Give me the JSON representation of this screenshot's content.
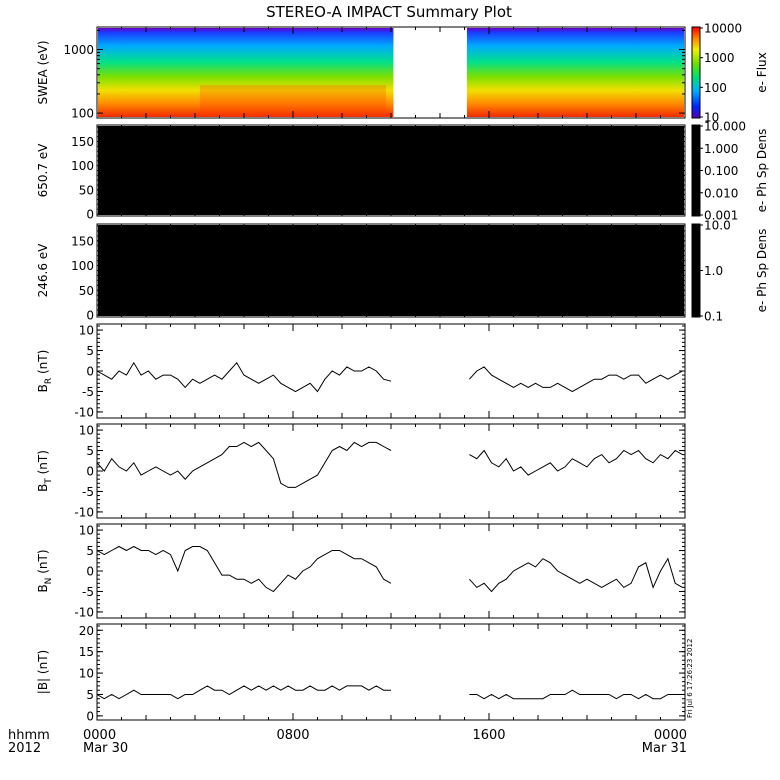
{
  "title": "STEREO-A IMPACT Summary Plot",
  "footer": {
    "time_label": "hhmm",
    "year_label": "2012",
    "x_ticks": [
      {
        "hour": 0,
        "label": "0000",
        "date": "Mar 30"
      },
      {
        "hour": 8,
        "label": "0800",
        "date": ""
      },
      {
        "hour": 16,
        "label": "1600",
        "date": ""
      },
      {
        "hour": 24,
        "label": "0000",
        "date": "Mar 31"
      }
    ],
    "timestamp": "Fri Jul  6 17:26:23 2012"
  },
  "chart_data": [
    {
      "type": "heatmap",
      "ylabel": "SWEA (eV)",
      "yscale": "log",
      "ylim": [
        90,
        2100
      ],
      "y_ticks": [
        100,
        1000
      ],
      "y_tick_labels": [
        "100",
        "1000"
      ],
      "data_gap_hours": [
        12.1,
        15.1
      ],
      "colorbar": {
        "label": "e- Flux",
        "scale": "log",
        "range": [
          10,
          10000
        ],
        "ticks": [
          10,
          100,
          1000,
          10000
        ],
        "tick_labels": [
          "10",
          "100",
          "1000",
          "10000"
        ]
      }
    },
    {
      "type": "heatmap",
      "ylabel": "650.7 eV",
      "ylim": [
        0,
        180
      ],
      "y_ticks": [
        0,
        50,
        100,
        150
      ],
      "y_tick_labels": [
        "0",
        "50",
        "100",
        "150"
      ],
      "colorbar": {
        "label": "e- Ph Sp Dens",
        "scale": "log",
        "range": [
          0.001,
          10
        ],
        "ticks": [
          0.001,
          0.01,
          0.1,
          1,
          10
        ],
        "tick_labels": [
          "0.001",
          "0.010",
          "0.100",
          "1.000",
          "10.000"
        ]
      }
    },
    {
      "type": "heatmap",
      "ylabel": "246.6 eV",
      "ylim": [
        0,
        180
      ],
      "y_ticks": [
        0,
        50,
        100,
        150
      ],
      "y_tick_labels": [
        "0",
        "50",
        "100",
        "150"
      ],
      "colorbar": {
        "label": "e- Ph Sp Dens",
        "scale": "log",
        "range": [
          0.1,
          10
        ],
        "ticks": [
          0.1,
          1,
          10
        ],
        "tick_labels": [
          "0.1",
          "1.0",
          "10.0"
        ]
      }
    },
    {
      "type": "line",
      "ylabel": "B",
      "ylabel_sub": "R",
      "ylabel_unit": "(nT)",
      "ylim": [
        -11,
        11
      ],
      "y_ticks": [
        -10,
        -5,
        0,
        5,
        10
      ],
      "y_tick_labels": [
        "-10",
        "-5",
        "0",
        "5",
        "10"
      ],
      "segments": [
        {
          "x": [
            0,
            0.3,
            0.6,
            0.9,
            1.2,
            1.5,
            1.8,
            2.1,
            2.4,
            2.7,
            3.0,
            3.3,
            3.6,
            3.9,
            4.2,
            4.5,
            4.8,
            5.1,
            5.4,
            5.7,
            6.0,
            6.3,
            6.6,
            6.9,
            7.2,
            7.5,
            7.8,
            8.1,
            8.4,
            8.7,
            9.0,
            9.3,
            9.6,
            9.9,
            10.2,
            10.5,
            10.8,
            11.1,
            11.4,
            11.7,
            12.0
          ],
          "y": [
            0,
            -1,
            -2,
            0,
            -1,
            2,
            -1,
            0,
            -2,
            -1,
            -1,
            -2,
            -4,
            -2,
            -3,
            -2,
            -1,
            -2,
            0,
            2,
            -1,
            -2,
            -3,
            -2,
            -1,
            -3,
            -4,
            -5,
            -4,
            -3,
            -5,
            -2,
            0,
            -1,
            1,
            0,
            0,
            1,
            0,
            -2,
            -2.5
          ]
        },
        {
          "x": [
            15.2,
            15.5,
            15.8,
            16.1,
            16.4,
            16.7,
            17.0,
            17.3,
            17.6,
            17.9,
            18.2,
            18.5,
            18.8,
            19.1,
            19.4,
            19.7,
            20.0,
            20.3,
            20.6,
            20.9,
            21.2,
            21.5,
            21.8,
            22.1,
            22.4,
            22.7,
            23.0,
            23.3,
            23.6,
            23.9
          ],
          "y": [
            -2,
            0,
            1,
            -1,
            -2,
            -3,
            -4,
            -3,
            -4,
            -3,
            -4,
            -4,
            -3,
            -4,
            -5,
            -4,
            -3,
            -2,
            -2,
            -1,
            -1,
            -2,
            -1,
            -1,
            -3,
            -2,
            -1,
            -2,
            -1,
            0
          ]
        }
      ]
    },
    {
      "type": "line",
      "ylabel": "B",
      "ylabel_sub": "T",
      "ylabel_unit": "(nT)",
      "ylim": [
        -11,
        11
      ],
      "y_ticks": [
        -10,
        -5,
        0,
        5,
        10
      ],
      "y_tick_labels": [
        "-10",
        "-5",
        "0",
        "5",
        "10"
      ],
      "segments": [
        {
          "x": [
            0,
            0.3,
            0.6,
            0.9,
            1.2,
            1.5,
            1.8,
            2.1,
            2.4,
            2.7,
            3.0,
            3.3,
            3.6,
            3.9,
            4.2,
            4.5,
            4.8,
            5.1,
            5.4,
            5.7,
            6.0,
            6.3,
            6.6,
            6.9,
            7.2,
            7.5,
            7.8,
            8.1,
            8.4,
            8.7,
            9.0,
            9.3,
            9.6,
            9.9,
            10.2,
            10.5,
            10.8,
            11.1,
            11.4,
            11.7,
            12.0
          ],
          "y": [
            2,
            0,
            3,
            1,
            0,
            2,
            -1,
            0,
            1,
            0,
            -1,
            0,
            -2,
            0,
            1,
            2,
            3,
            4,
            6,
            6,
            7,
            6,
            7,
            5,
            3,
            -3,
            -4,
            -4,
            -3,
            -2,
            -1,
            2,
            5,
            6,
            5,
            7,
            6,
            7,
            7,
            6,
            5
          ]
        },
        {
          "x": [
            15.2,
            15.5,
            15.8,
            16.1,
            16.4,
            16.7,
            17.0,
            17.3,
            17.6,
            17.9,
            18.2,
            18.5,
            18.8,
            19.1,
            19.4,
            19.7,
            20.0,
            20.3,
            20.6,
            20.9,
            21.2,
            21.5,
            21.8,
            22.1,
            22.4,
            22.7,
            23.0,
            23.3,
            23.6,
            23.9
          ],
          "y": [
            4,
            3,
            5,
            2,
            1,
            3,
            0,
            1,
            -1,
            0,
            1,
            2,
            0,
            1,
            3,
            2,
            1,
            3,
            4,
            2,
            3,
            5,
            4,
            5,
            3,
            2,
            4,
            3,
            5,
            4
          ]
        }
      ]
    },
    {
      "type": "line",
      "ylabel": "B",
      "ylabel_sub": "N",
      "ylabel_unit": "(nT)",
      "ylim": [
        -11,
        11
      ],
      "y_ticks": [
        -10,
        -5,
        0,
        5,
        10
      ],
      "y_tick_labels": [
        "-10",
        "-5",
        "0",
        "5",
        "10"
      ],
      "segments": [
        {
          "x": [
            0,
            0.3,
            0.6,
            0.9,
            1.2,
            1.5,
            1.8,
            2.1,
            2.4,
            2.7,
            3.0,
            3.3,
            3.6,
            3.9,
            4.2,
            4.5,
            4.8,
            5.1,
            5.4,
            5.7,
            6.0,
            6.3,
            6.6,
            6.9,
            7.2,
            7.5,
            7.8,
            8.1,
            8.4,
            8.7,
            9.0,
            9.3,
            9.6,
            9.9,
            10.2,
            10.5,
            10.8,
            11.1,
            11.4,
            11.7,
            12.0
          ],
          "y": [
            5,
            4,
            5,
            6,
            5,
            6,
            5,
            5,
            4,
            5,
            4,
            0,
            5,
            6,
            6,
            5,
            2,
            -1,
            -1,
            -2,
            -2,
            -3,
            -2,
            -4,
            -5,
            -3,
            -1,
            -2,
            0,
            1,
            3,
            4,
            5,
            5,
            4,
            3,
            3,
            2,
            1,
            -2,
            -3
          ]
        },
        {
          "x": [
            15.2,
            15.5,
            15.8,
            16.1,
            16.4,
            16.7,
            17.0,
            17.3,
            17.6,
            17.9,
            18.2,
            18.5,
            18.8,
            19.1,
            19.4,
            19.7,
            20.0,
            20.3,
            20.6,
            20.9,
            21.2,
            21.5,
            21.8,
            22.1,
            22.4,
            22.7,
            23.0,
            23.3,
            23.6,
            23.9
          ],
          "y": [
            -2,
            -4,
            -3,
            -5,
            -3,
            -2,
            0,
            1,
            2,
            1,
            3,
            2,
            0,
            -1,
            -2,
            -3,
            -2,
            -3,
            -4,
            -3,
            -2,
            -4,
            -3,
            1,
            2,
            -4,
            0,
            3,
            -3,
            -4
          ]
        }
      ]
    },
    {
      "type": "line",
      "ylabel": "|B|",
      "ylabel_unit": "(nT)",
      "ylim": [
        -0.5,
        21
      ],
      "y_ticks": [
        0,
        5,
        10,
        15,
        20
      ],
      "y_tick_labels": [
        "0",
        "5",
        "10",
        "15",
        "20"
      ],
      "segments": [
        {
          "x": [
            0,
            0.3,
            0.6,
            0.9,
            1.2,
            1.5,
            1.8,
            2.1,
            2.4,
            2.7,
            3.0,
            3.3,
            3.6,
            3.9,
            4.2,
            4.5,
            4.8,
            5.1,
            5.4,
            5.7,
            6.0,
            6.3,
            6.6,
            6.9,
            7.2,
            7.5,
            7.8,
            8.1,
            8.4,
            8.7,
            9.0,
            9.3,
            9.6,
            9.9,
            10.2,
            10.5,
            10.8,
            11.1,
            11.4,
            11.7,
            12.0
          ],
          "y": [
            5,
            4,
            5,
            4,
            5,
            6,
            5,
            5,
            5,
            5,
            5,
            4,
            5,
            5,
            6,
            7,
            6,
            6,
            5,
            6,
            7,
            6,
            7,
            6,
            7,
            6,
            7,
            6,
            6,
            7,
            6,
            6,
            7,
            6,
            7,
            7,
            7,
            6,
            7,
            6,
            6
          ]
        },
        {
          "x": [
            15.2,
            15.5,
            15.8,
            16.1,
            16.4,
            16.7,
            17.0,
            17.3,
            17.6,
            17.9,
            18.2,
            18.5,
            18.8,
            19.1,
            19.4,
            19.7,
            20.0,
            20.3,
            20.6,
            20.9,
            21.2,
            21.5,
            21.8,
            22.1,
            22.4,
            22.7,
            23.0,
            23.3,
            23.6,
            23.9
          ],
          "y": [
            5,
            5,
            4,
            5,
            4,
            5,
            4,
            4,
            4,
            4,
            4,
            5,
            5,
            5,
            6,
            5,
            5,
            5,
            5,
            5,
            4,
            5,
            5,
            4,
            5,
            4,
            4,
            5,
            5,
            5
          ]
        }
      ]
    }
  ]
}
